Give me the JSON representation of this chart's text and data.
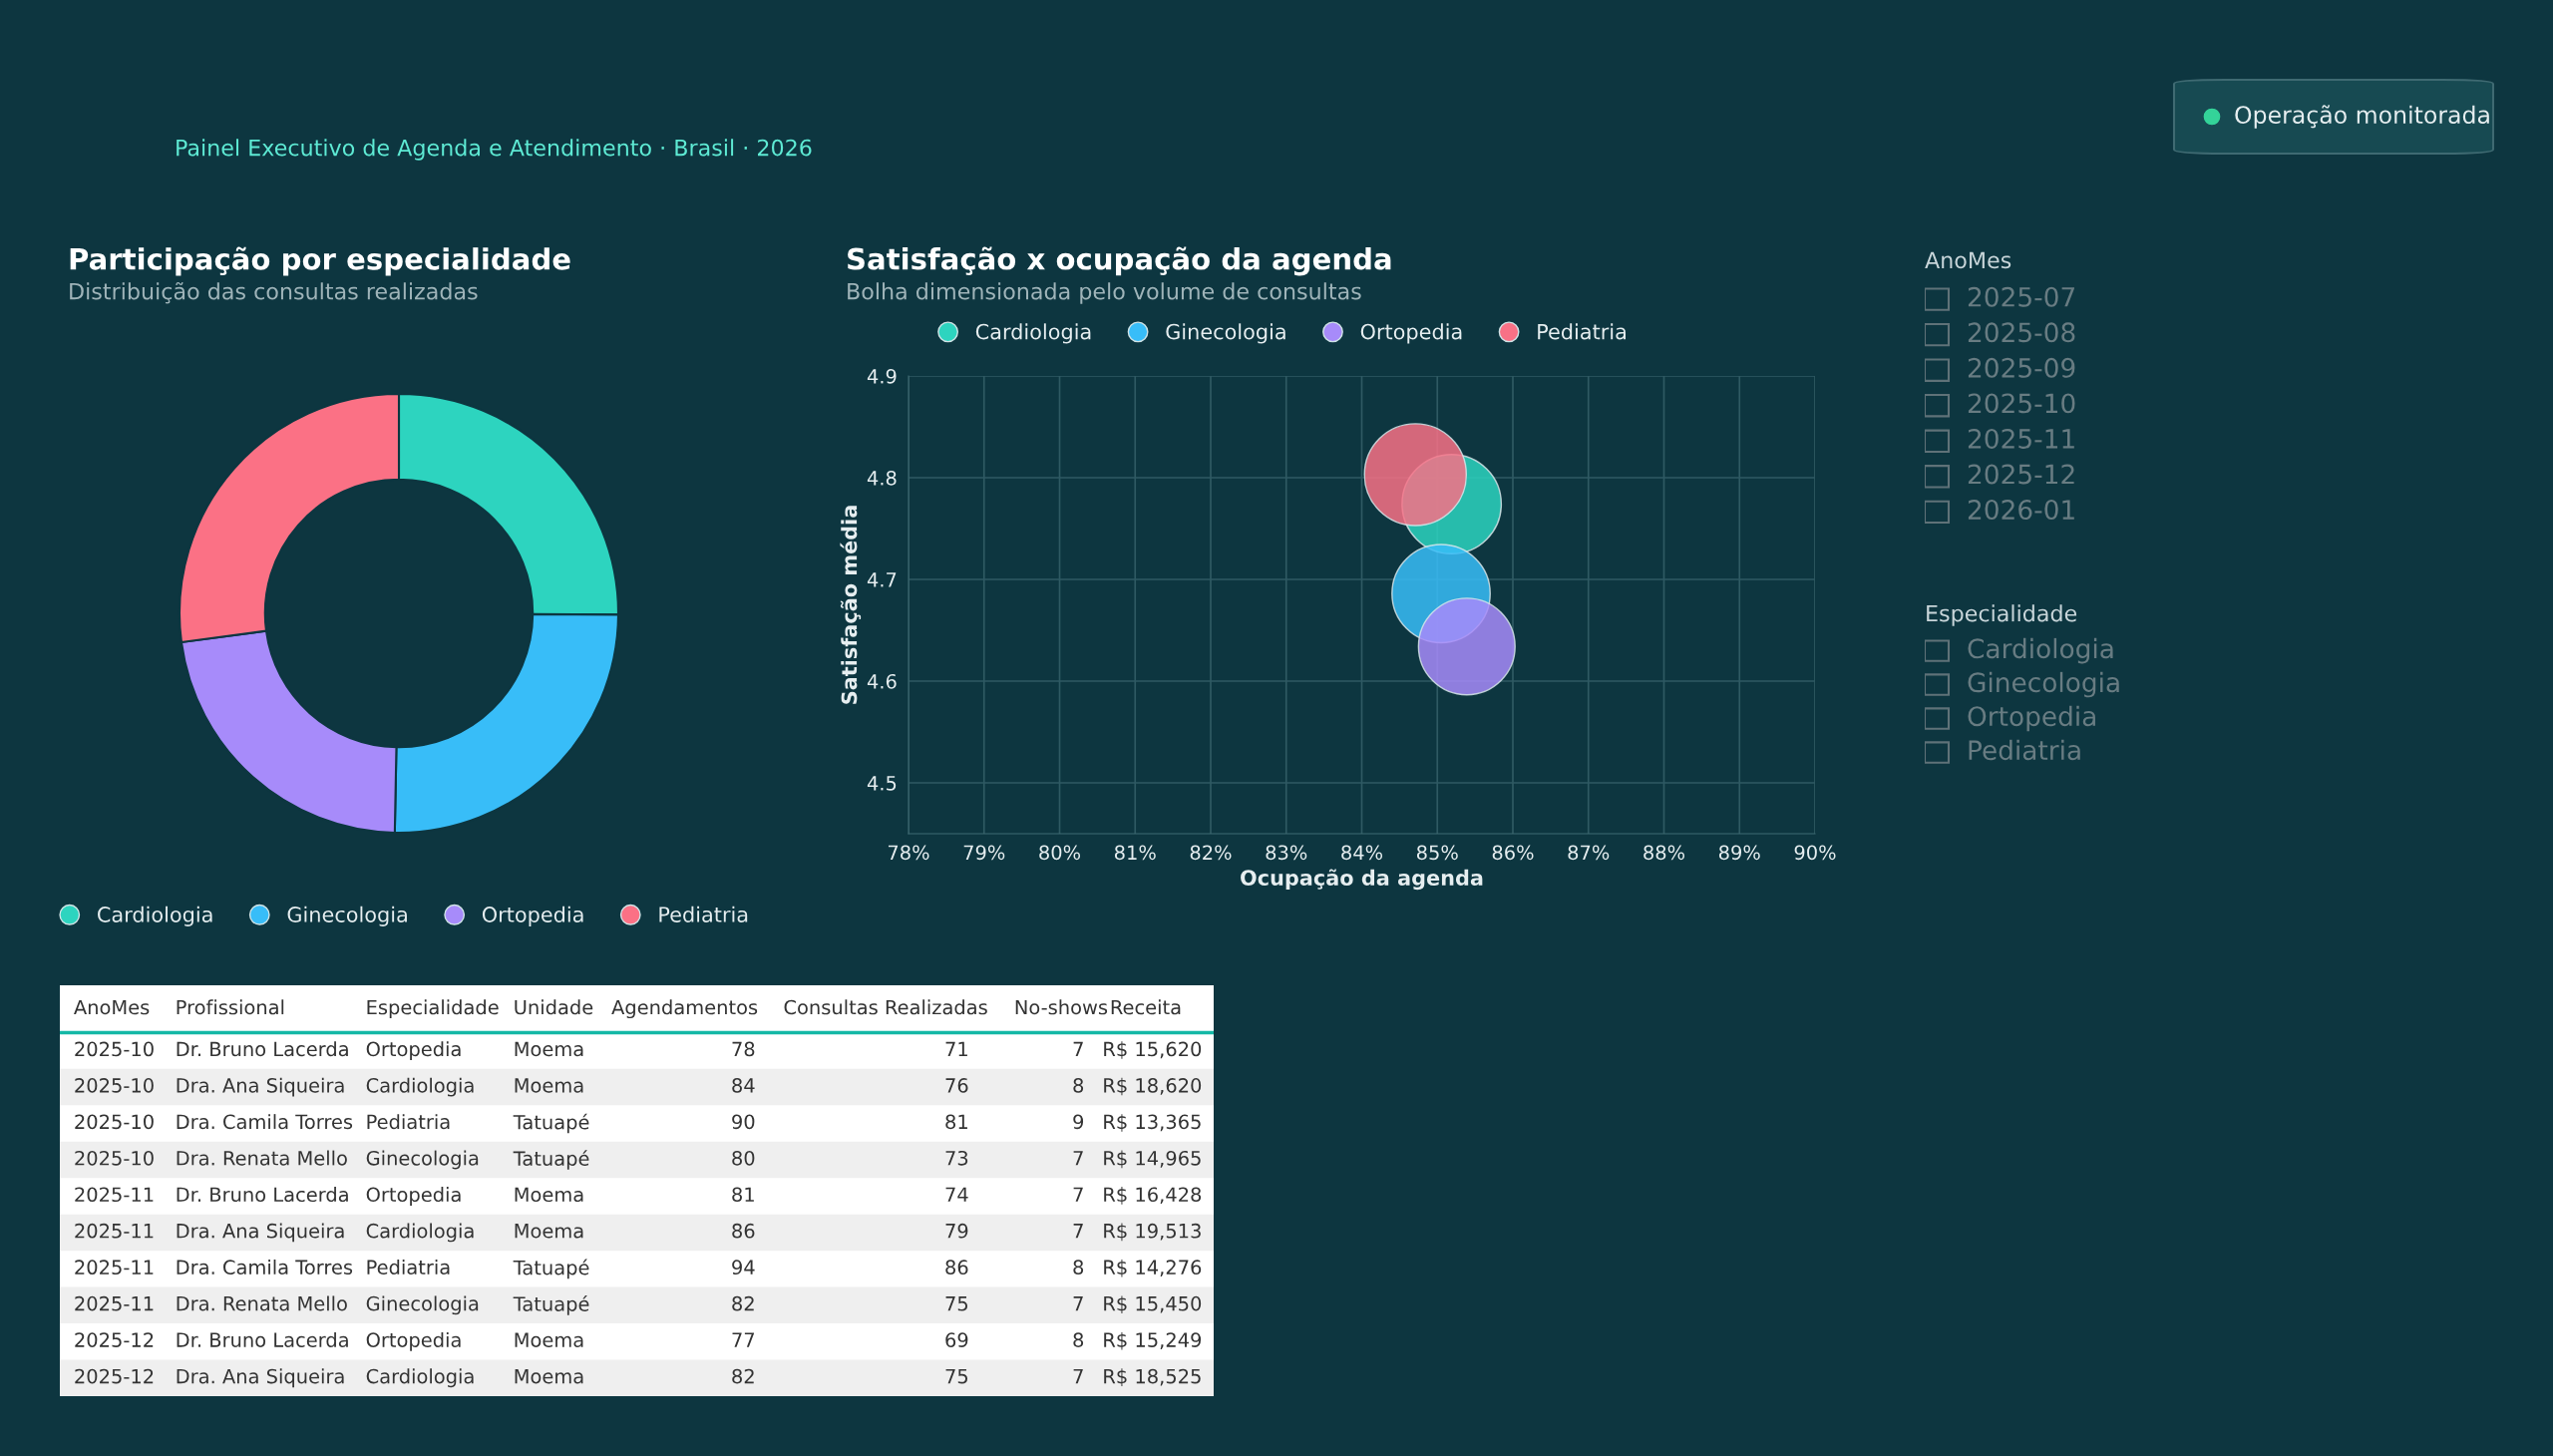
{
  "chart_data": [
    {
      "type": "other",
      "subtitle": "Painel Executivo de Agenda e Atendimento · Brasil · 2026",
      "annotations": [
        "Operação monitorada"
      ]
    },
    {
      "type": "donut",
      "title": "Participação por especialidade",
      "subtitle": "Distribuição das consultas realizadas",
      "categories": [
        "Cardiologia",
        "Ginecologia",
        "Ortopedia",
        "Pediatria"
      ],
      "values": [
        25.1,
        25.2,
        22.6,
        27.1
      ],
      "colors": [
        "#2dd4bf",
        "#38bdf8",
        "#a78bfa",
        "#fb7185"
      ],
      "legend": "bottom"
    },
    {
      "type": "bubble",
      "title": "Satisfação x ocupação da agenda",
      "subtitle": "Bolha dimensionada pelo volume de consultas",
      "xlabel": "Ocupação da agenda",
      "ylabel": "Satisfação média",
      "legend": "top",
      "grid": true,
      "xlim": [
        78,
        90
      ],
      "xticks": [
        {
          "value": 78,
          "label": "78%"
        },
        {
          "value": 79,
          "label": "79%"
        },
        {
          "value": 80,
          "label": "80%"
        },
        {
          "value": 81,
          "label": "81%"
        },
        {
          "value": 82,
          "label": "82%"
        },
        {
          "value": 83,
          "label": "83%"
        },
        {
          "value": 84,
          "label": "84%"
        },
        {
          "value": 85,
          "label": "85%"
        },
        {
          "value": 86,
          "label": "86%"
        },
        {
          "value": 87,
          "label": "87%"
        },
        {
          "value": 88,
          "label": "88%"
        },
        {
          "value": 89,
          "label": "89%"
        },
        {
          "value": 90,
          "label": "90%"
        }
      ],
      "ylim": [
        4.45,
        4.9
      ],
      "yticks": [
        4.5,
        4.6,
        4.7,
        4.8,
        4.9
      ],
      "series": [
        {
          "name": "Cardiologia",
          "color": "#2dd4bf",
          "x": [
            85.19
          ],
          "values": [
            4.774
          ],
          "sizes": [
            0.95
          ]
        },
        {
          "name": "Ginecologia",
          "color": "#38bdf8",
          "x": [
            85.05
          ],
          "values": [
            4.686
          ],
          "sizes": [
            0.93
          ]
        },
        {
          "name": "Ortopedia",
          "color": "#a78bfa",
          "x": [
            85.39
          ],
          "values": [
            4.634
          ],
          "sizes": [
            0.9
          ]
        },
        {
          "name": "Pediatria",
          "color": "#f87186",
          "x": [
            84.71
          ],
          "values": [
            4.803
          ],
          "sizes": [
            1
          ]
        }
      ]
    },
    {
      "type": "other",
      "title": "AnoMes",
      "categories": [
        "2025-07",
        "2025-08",
        "2025-09",
        "2025-10",
        "2025-11",
        "2025-12",
        "2026-01"
      ]
    },
    {
      "type": "other",
      "title": "Especialidade",
      "categories": [
        "Cardiologia",
        "Ginecologia",
        "Ortopedia",
        "Pediatria"
      ]
    },
    {
      "type": "other",
      "categories": [
        "AnoMes",
        "Profissional",
        "Especialidade",
        "Unidade",
        "Agendamentos",
        "Consultas Realizadas",
        "No-shows",
        "Receita"
      ],
      "cell_labels": [
        [
          "2025-10",
          "Dr. Bruno Lacerda",
          "Ortopedia",
          "Moema",
          "78",
          "71",
          "7",
          "R$ 15,620"
        ],
        [
          "2025-10",
          "Dra. Ana Siqueira",
          "Cardiologia",
          "Moema",
          "84",
          "76",
          "8",
          "R$ 18,620"
        ],
        [
          "2025-10",
          "Dra. Camila Torres",
          "Pediatria",
          "Tatuapé",
          "90",
          "81",
          "9",
          "R$ 13,365"
        ],
        [
          "2025-10",
          "Dra. Renata Mello",
          "Ginecologia",
          "Tatuapé",
          "80",
          "73",
          "7",
          "R$ 14,965"
        ],
        [
          "2025-11",
          "Dr. Bruno Lacerda",
          "Ortopedia",
          "Moema",
          "81",
          "74",
          "7",
          "R$ 16,428"
        ],
        [
          "2025-11",
          "Dra. Ana Siqueira",
          "Cardiologia",
          "Moema",
          "86",
          "79",
          "7",
          "R$ 19,513"
        ],
        [
          "2025-11",
          "Dra. Camila Torres",
          "Pediatria",
          "Tatuapé",
          "94",
          "86",
          "8",
          "R$ 14,276"
        ],
        [
          "2025-11",
          "Dra. Renata Mello",
          "Ginecologia",
          "Tatuapé",
          "82",
          "75",
          "7",
          "R$ 15,450"
        ],
        [
          "2025-12",
          "Dr. Bruno Lacerda",
          "Ortopedia",
          "Moema",
          "77",
          "69",
          "8",
          "R$ 15,249"
        ],
        [
          "2025-12",
          "Dra. Ana Siqueira",
          "Cardiologia",
          "Moema",
          "82",
          "75",
          "7",
          "R$ 18,525"
        ]
      ]
    }
  ]
}
